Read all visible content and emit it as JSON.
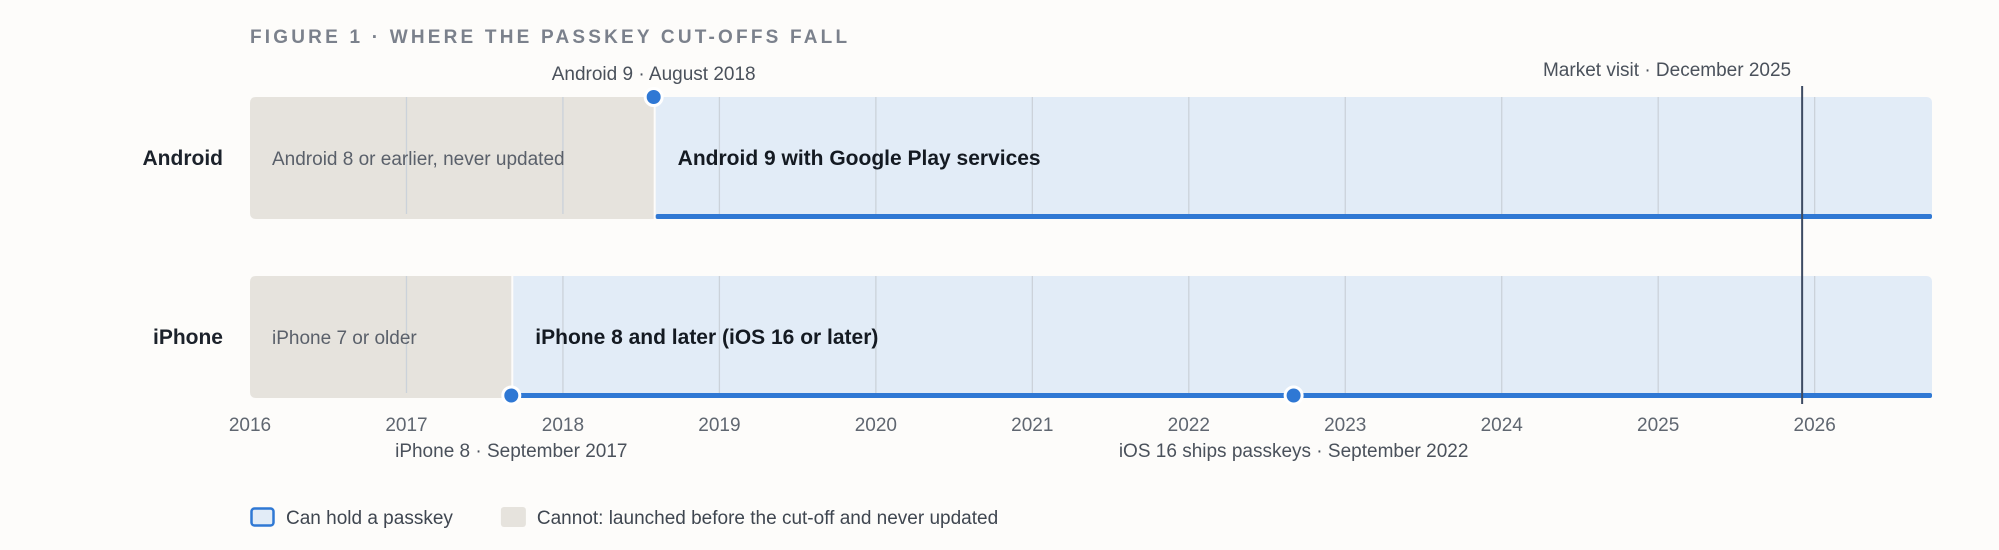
{
  "chart_data": {
    "type": "timeline",
    "title": "FIGURE 1 · WHERE THE PASSKEY CUT-OFFS FALL",
    "x_axis": {
      "min": 2016.0,
      "max": 2026.75,
      "ticks": [
        2016,
        2017,
        2018,
        2019,
        2020,
        2021,
        2022,
        2023,
        2024,
        2025,
        2026
      ],
      "tick_labels": [
        "2016",
        "2017",
        "2018",
        "2019",
        "2020",
        "2021",
        "2022",
        "2023",
        "2024",
        "2025",
        "2026"
      ],
      "grid": true
    },
    "rows": [
      {
        "name": "Android",
        "segments": [
          {
            "start": 2016.0,
            "end": 2018.58,
            "can_hold": false,
            "label": "Android 8 or earlier, never updated"
          },
          {
            "start": 2018.58,
            "end": 2026.75,
            "can_hold": true,
            "label": "Android 9 with Google Play services"
          }
        ],
        "events": [
          {
            "x": 2018.58,
            "label": "Android 9 · August 2018",
            "label_position": "above"
          }
        ]
      },
      {
        "name": "iPhone",
        "segments": [
          {
            "start": 2016.0,
            "end": 2017.67,
            "can_hold": false,
            "label": "iPhone 7 or older"
          },
          {
            "start": 2017.67,
            "end": 2026.75,
            "can_hold": true,
            "label": "iPhone 8 and later (iOS 16 or later)"
          }
        ],
        "events": [
          {
            "x": 2017.67,
            "label": "iPhone 8 · September 2017",
            "label_position": "below"
          },
          {
            "x": 2022.67,
            "label": "iOS 16 ships passkeys · September 2022",
            "label_position": "below"
          }
        ]
      }
    ],
    "marker": {
      "x": 2025.92,
      "label": "Market visit · December 2025"
    },
    "legend": {
      "placement": "bottom-left",
      "items": [
        {
          "label": "Can hold a passkey",
          "kind": "can"
        },
        {
          "label": "Cannot: launched before the cut-off and never updated",
          "kind": "cannot"
        }
      ]
    },
    "colors": {
      "can_fill": "#e2ecf7",
      "cannot_fill": "#e6e3dd",
      "accent": "#2f78d4",
      "grid": "#cbd2da",
      "marker": "#3d4b63"
    }
  }
}
